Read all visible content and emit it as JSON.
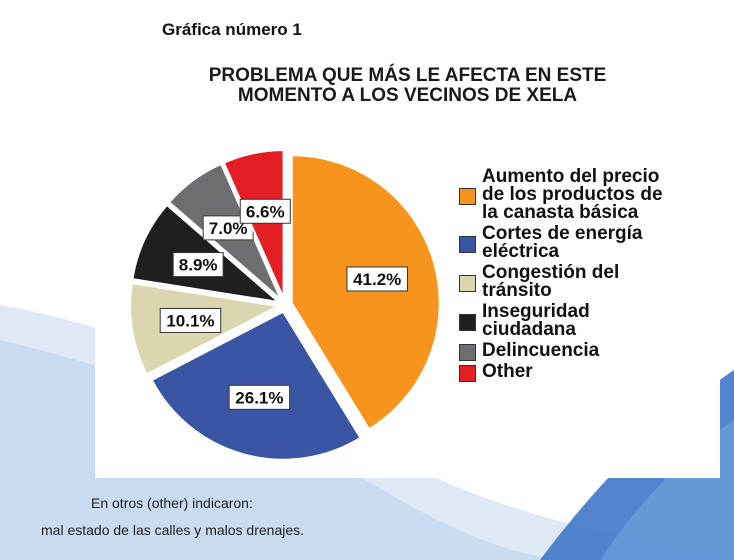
{
  "document": {
    "heading": "Gráfica número 1",
    "footnote_line1": "En otros (other) indicaron:",
    "footnote_line2": "mal estado de las calles y malos drenajes."
  },
  "chart_data": {
    "type": "pie",
    "title_line1": "PROBLEMA QUE MÁS LE AFECTA EN ESTE",
    "title_line2": "MOMENTO A LOS VECINOS DE XELA",
    "slices": [
      {
        "label_lines": [
          "Aumento del precio",
          "de los productos de",
          "la canasta básica"
        ],
        "value": 41.2,
        "value_label": "41.2%",
        "color": "#F7941D"
      },
      {
        "label_lines": [
          "Cortes de energía",
          "eléctrica"
        ],
        "value": 26.1,
        "value_label": "26.1%",
        "color": "#3A55A4"
      },
      {
        "label_lines": [
          "Congestión del",
          "tránsito"
        ],
        "value": 10.1,
        "value_label": "10.1%",
        "color": "#DAD6B0"
      },
      {
        "label_lines": [
          "Inseguridad",
          "ciudadana"
        ],
        "value": 8.9,
        "value_label": "8.9%",
        "color": "#1F1F1F"
      },
      {
        "label_lines": [
          "Delincuencia"
        ],
        "value": 7.0,
        "value_label": "7.0%",
        "color": "#6D6E71"
      },
      {
        "label_lines": [
          "Other"
        ],
        "value": 6.6,
        "value_label": "6.6%",
        "color": "#E31E25"
      }
    ],
    "start_angle_deg": 0,
    "direction": "clockwise",
    "all_slices_exploded": true,
    "legend_position": "right"
  }
}
